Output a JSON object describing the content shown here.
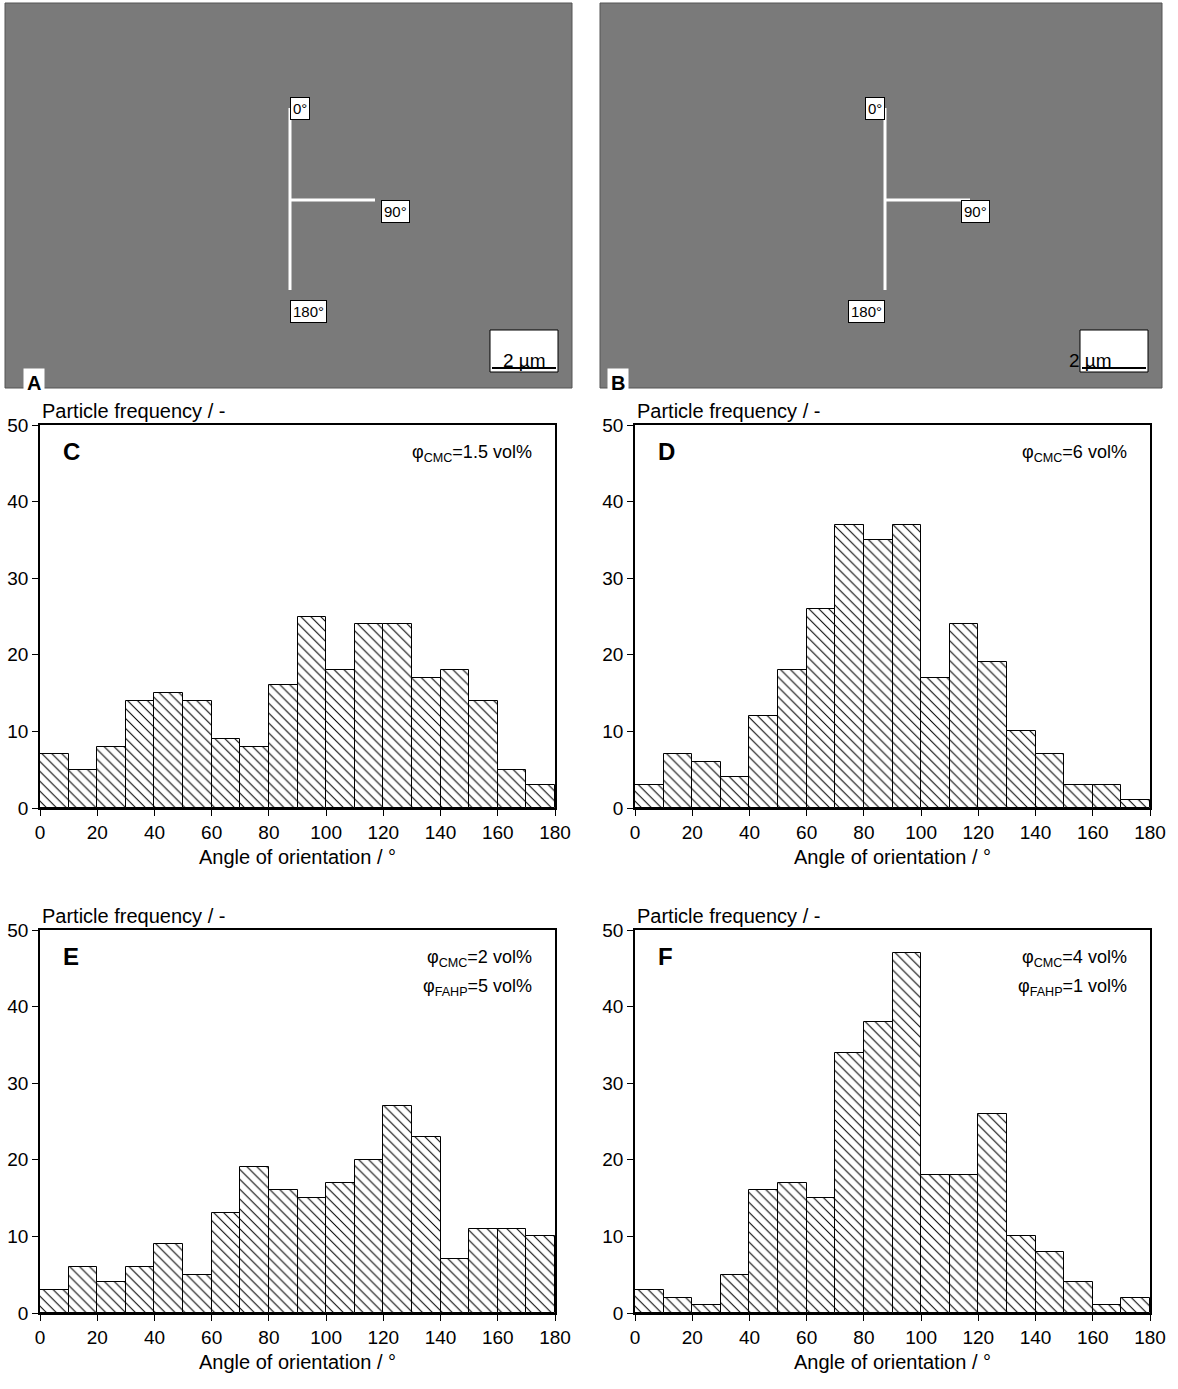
{
  "images": [
    {
      "label": "A",
      "orientation_labels": [
        "0°",
        "90°",
        "180°"
      ],
      "scale_bar": "2 µm"
    },
    {
      "label": "B",
      "orientation_labels": [
        "0°",
        "90°",
        "180°"
      ],
      "scale_bar": "2 µm"
    }
  ],
  "chart_data": [
    {
      "type": "histogram",
      "panel": "C",
      "marker": "hatched",
      "color": "#000000",
      "xlabel": "Angle of orientation / °",
      "ylabel": "Particle frequency / -",
      "bins": [
        0,
        10,
        20,
        30,
        40,
        50,
        60,
        70,
        80,
        90,
        100,
        110,
        120,
        130,
        140,
        150,
        160,
        170,
        180
      ],
      "values": [
        7,
        5,
        8,
        14,
        15,
        14,
        9,
        8,
        16,
        25,
        18,
        24,
        24,
        17,
        18,
        14,
        5,
        3
      ],
      "xlim": [
        0,
        180
      ],
      "xticks": [
        0,
        20,
        40,
        60,
        80,
        100,
        120,
        140,
        160,
        180
      ],
      "ylim": [
        0,
        50
      ],
      "yticks": [
        0,
        10,
        20,
        30,
        40,
        50
      ],
      "annotations": [
        {
          "symbol": "φ",
          "sub": "CMC",
          "rest": "=1.5 vol%"
        }
      ]
    },
    {
      "type": "histogram",
      "panel": "D",
      "marker": "hatched",
      "color": "#000000",
      "xlabel": "Angle of orientation / °",
      "ylabel": "Particle frequency / -",
      "bins": [
        0,
        10,
        20,
        30,
        40,
        50,
        60,
        70,
        80,
        90,
        100,
        110,
        120,
        130,
        140,
        150,
        160,
        170,
        180
      ],
      "values": [
        3,
        7,
        6,
        4,
        12,
        18,
        26,
        37,
        35,
        37,
        17,
        24,
        19,
        10,
        7,
        3,
        3,
        1
      ],
      "xlim": [
        0,
        180
      ],
      "xticks": [
        0,
        20,
        40,
        60,
        80,
        100,
        120,
        140,
        160,
        180
      ],
      "ylim": [
        0,
        50
      ],
      "yticks": [
        0,
        10,
        20,
        30,
        40,
        50
      ],
      "annotations": [
        {
          "symbol": "φ",
          "sub": "CMC",
          "rest": "=6 vol%"
        }
      ]
    },
    {
      "type": "histogram",
      "panel": "E",
      "marker": "hatched",
      "color": "#000000",
      "xlabel": "Angle of orientation / °",
      "ylabel": "Particle frequency / -",
      "bins": [
        0,
        10,
        20,
        30,
        40,
        50,
        60,
        70,
        80,
        90,
        100,
        110,
        120,
        130,
        140,
        150,
        160,
        170,
        180
      ],
      "values": [
        3,
        6,
        4,
        6,
        9,
        5,
        13,
        19,
        16,
        15,
        17,
        20,
        27,
        23,
        7,
        11,
        11,
        10
      ],
      "xlim": [
        0,
        180
      ],
      "xticks": [
        0,
        20,
        40,
        60,
        80,
        100,
        120,
        140,
        160,
        180
      ],
      "ylim": [
        0,
        50
      ],
      "yticks": [
        0,
        10,
        20,
        30,
        40,
        50
      ],
      "annotations": [
        {
          "symbol": "φ",
          "sub": "CMC",
          "rest": "=2 vol%"
        },
        {
          "symbol": "φ",
          "sub": "FAHP",
          "rest": "=5 vol%"
        }
      ]
    },
    {
      "type": "histogram",
      "panel": "F",
      "marker": "hatched",
      "color": "#000000",
      "xlabel": "Angle of orientation / °",
      "ylabel": "Particle frequency / -",
      "bins": [
        0,
        10,
        20,
        30,
        40,
        50,
        60,
        70,
        80,
        90,
        100,
        110,
        120,
        130,
        140,
        150,
        160,
        170,
        180
      ],
      "values": [
        3,
        2,
        1,
        5,
        16,
        17,
        15,
        34,
        38,
        47,
        18,
        18,
        26,
        10,
        8,
        4,
        1,
        2
      ],
      "xlim": [
        0,
        180
      ],
      "xticks": [
        0,
        20,
        40,
        60,
        80,
        100,
        120,
        140,
        160,
        180
      ],
      "ylim": [
        0,
        50
      ],
      "yticks": [
        0,
        10,
        20,
        30,
        40,
        50
      ],
      "annotations": [
        {
          "symbol": "φ",
          "sub": "CMC",
          "rest": "=4 vol%"
        },
        {
          "symbol": "φ",
          "sub": "FAHP",
          "rest": "=1 vol%"
        }
      ]
    }
  ]
}
